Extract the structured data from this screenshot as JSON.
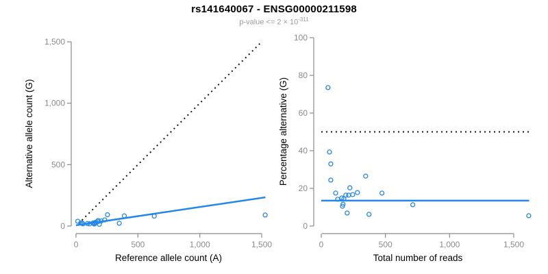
{
  "header": {
    "title": "rs141640067 - ENSG00000211598",
    "subtitle_base": "p-value <= 2 × 10",
    "subtitle_exponent": "-311"
  },
  "colors": {
    "accent_blue": "#2287E8",
    "axis_gray": "#8a8a8a",
    "dotted_black": "#111111"
  },
  "chart_data": [
    {
      "id": "left",
      "type": "scatter",
      "xlabel": "Reference allele count (A)",
      "ylabel": "Alternative allele count (G)",
      "xlim": [
        0,
        1500
      ],
      "ylim": [
        0,
        1500
      ],
      "grid": false,
      "legend": null,
      "xticks": {
        "values": [
          0,
          500,
          1000,
          1500
        ],
        "labels": [
          "0",
          "500",
          "1,000",
          "1,500"
        ]
      },
      "yticks": {
        "values": [
          0,
          500,
          1000,
          1500
        ],
        "labels": [
          "0",
          "500",
          "1,000",
          "1,500"
        ]
      },
      "points": [
        [
          14,
          39
        ],
        [
          39,
          25
        ],
        [
          50,
          24
        ],
        [
          56,
          18
        ],
        [
          92,
          20
        ],
        [
          110,
          18
        ],
        [
          136,
          24
        ],
        [
          148,
          17
        ],
        [
          150,
          20
        ],
        [
          150,
          26
        ],
        [
          160,
          31
        ],
        [
          178,
          35
        ],
        [
          178,
          45
        ],
        [
          188,
          14
        ],
        [
          204,
          41
        ],
        [
          232,
          50
        ],
        [
          254,
          92
        ],
        [
          349,
          23
        ],
        [
          390,
          83
        ],
        [
          632,
          81
        ],
        [
          1528,
          90
        ]
      ],
      "lines": [
        {
          "name": "identity-line",
          "style": "dotted",
          "color": "#111111",
          "from": [
            20,
            20
          ],
          "to": [
            1500,
            1500
          ]
        },
        {
          "name": "fit-line",
          "style": "solid",
          "color": "#2287E8",
          "from": [
            0,
            6
          ],
          "to": [
            1530,
            234
          ]
        }
      ]
    },
    {
      "id": "right",
      "type": "scatter",
      "xlabel": "Total number of reads",
      "ylabel": "Percentage alternative (G)",
      "xlim": [
        0,
        1500
      ],
      "ylim": [
        0,
        100
      ],
      "grid": false,
      "legend": null,
      "xticks": {
        "values": [
          0,
          500,
          1000,
          1500
        ],
        "labels": [
          "0",
          "500",
          "1,000",
          "1,500"
        ]
      },
      "yticks": {
        "values": [
          0,
          20,
          40,
          60,
          80,
          100
        ],
        "labels": [
          "0",
          "20",
          "40",
          "60",
          "80",
          "100"
        ]
      },
      "points": [
        [
          53,
          73.5
        ],
        [
          64,
          39.3
        ],
        [
          74,
          33
        ],
        [
          74,
          24.4
        ],
        [
          112,
          17.5
        ],
        [
          128,
          14.2
        ],
        [
          160,
          14.9
        ],
        [
          165,
          10.5
        ],
        [
          170,
          11.6
        ],
        [
          176,
          14.5
        ],
        [
          191,
          16.4
        ],
        [
          202,
          6.9
        ],
        [
          213,
          16.4
        ],
        [
          223,
          20.3
        ],
        [
          245,
          16.7
        ],
        [
          282,
          17.8
        ],
        [
          346,
          26.5
        ],
        [
          372,
          6.2
        ],
        [
          473,
          17.5
        ],
        [
          713,
          11.3
        ],
        [
          1617,
          5.5
        ]
      ],
      "lines": [
        {
          "name": "fifty-percent-line",
          "style": "dotted",
          "color": "#111111",
          "from": [
            0,
            50
          ],
          "to": [
            1620,
            50
          ]
        },
        {
          "name": "mean-percentage-line",
          "style": "solid",
          "color": "#2287E8",
          "from": [
            0,
            13.5
          ],
          "to": [
            1620,
            13.5
          ]
        }
      ]
    }
  ]
}
